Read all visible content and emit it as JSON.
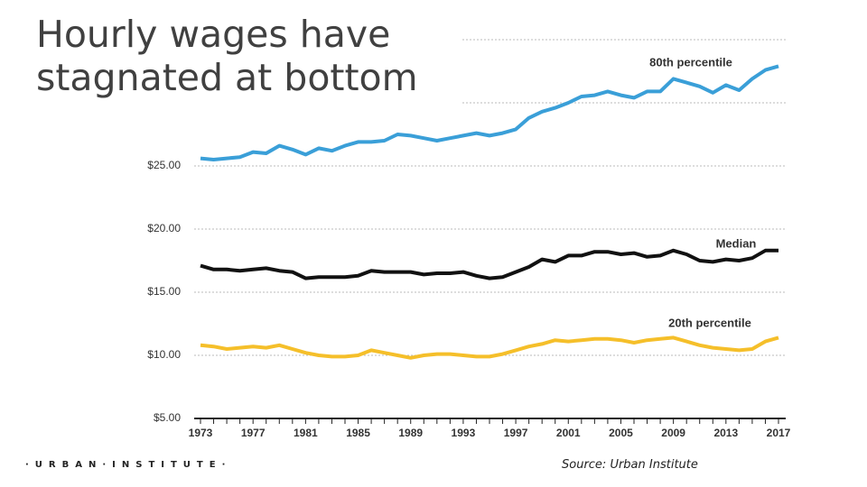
{
  "chart_data": {
    "type": "line",
    "title": "Hourly wages have stagnated at bottom",
    "source": "Source: Urban Institute",
    "logo": "·URBAN·INSTITUTE·",
    "x": [
      1973,
      1974,
      1975,
      1976,
      1977,
      1978,
      1979,
      1980,
      1981,
      1982,
      1983,
      1984,
      1985,
      1986,
      1987,
      1988,
      1989,
      1990,
      1991,
      1992,
      1993,
      1994,
      1995,
      1996,
      1997,
      1998,
      1999,
      2000,
      2001,
      2002,
      2003,
      2004,
      2005,
      2006,
      2007,
      2008,
      2009,
      2010,
      2011,
      2012,
      2013,
      2014,
      2015,
      2016,
      2017
    ],
    "xlim": [
      1973,
      2017
    ],
    "xticks": [
      1973,
      1977,
      1981,
      1985,
      1989,
      1993,
      1997,
      2001,
      2005,
      2009,
      2013,
      2017
    ],
    "ylim": [
      5,
      35
    ],
    "yticks": [
      {
        "value": 5,
        "label": "$5.00"
      },
      {
        "value": 10,
        "label": "$10.00"
      },
      {
        "value": 15,
        "label": "$15.00"
      },
      {
        "value": 20,
        "label": "$20.00"
      },
      {
        "value": 25,
        "label": "$25.00"
      }
    ],
    "ygrid_extra": [
      30,
      35
    ],
    "grid": true,
    "series": [
      {
        "name": "80th percentile",
        "color": "#3a9fd8",
        "values": [
          25.6,
          25.5,
          25.6,
          25.7,
          26.1,
          26.0,
          26.6,
          26.3,
          25.9,
          26.4,
          26.2,
          26.6,
          26.9,
          26.9,
          27.0,
          27.5,
          27.4,
          27.2,
          27.0,
          27.2,
          27.4,
          27.6,
          27.4,
          27.6,
          27.9,
          28.8,
          29.3,
          29.6,
          30.0,
          30.5,
          30.6,
          30.9,
          30.6,
          30.4,
          30.9,
          30.9,
          31.9,
          31.6,
          31.3,
          30.8,
          31.4,
          31.0,
          31.9,
          32.6,
          32.9
        ]
      },
      {
        "name": "Median",
        "color": "#111111",
        "values": [
          17.1,
          16.8,
          16.8,
          16.7,
          16.8,
          16.9,
          16.7,
          16.6,
          16.1,
          16.2,
          16.2,
          16.2,
          16.3,
          16.7,
          16.6,
          16.6,
          16.6,
          16.4,
          16.5,
          16.5,
          16.6,
          16.3,
          16.1,
          16.2,
          16.6,
          17.0,
          17.6,
          17.4,
          17.9,
          17.9,
          18.2,
          18.2,
          18.0,
          18.1,
          17.8,
          17.9,
          18.3,
          18.0,
          17.5,
          17.4,
          17.6,
          17.5,
          17.7,
          18.3,
          18.3
        ]
      },
      {
        "name": "20th percentile",
        "color": "#f5bf2a",
        "values": [
          10.8,
          10.7,
          10.5,
          10.6,
          10.7,
          10.6,
          10.8,
          10.5,
          10.2,
          10.0,
          9.9,
          9.9,
          10.0,
          10.4,
          10.2,
          10.0,
          9.8,
          10.0,
          10.1,
          10.1,
          10.0,
          9.9,
          9.9,
          10.1,
          10.4,
          10.7,
          10.9,
          11.2,
          11.1,
          11.2,
          11.3,
          11.3,
          11.2,
          11.0,
          11.2,
          11.3,
          11.4,
          11.1,
          10.8,
          10.6,
          10.5,
          10.4,
          10.5,
          11.1,
          11.4
        ]
      }
    ]
  }
}
